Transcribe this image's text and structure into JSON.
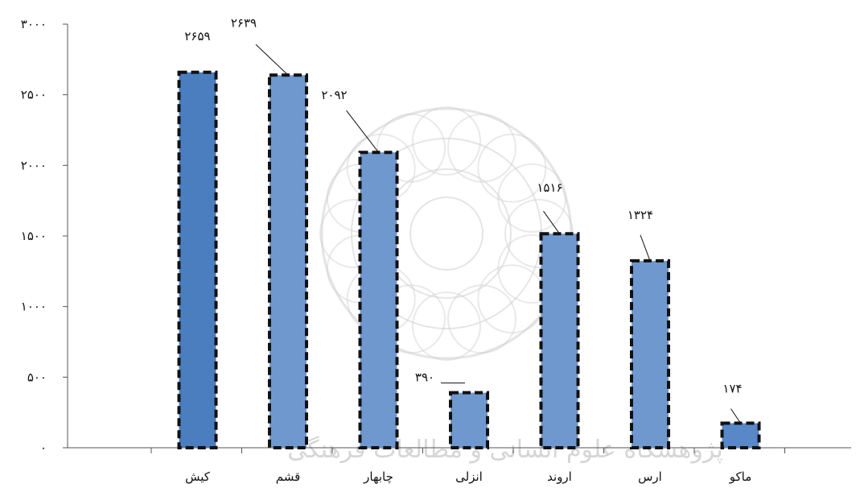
{
  "chart_data": {
    "type": "bar",
    "categories": [
      "کیش",
      "قشم",
      "چابهار",
      "انزلی",
      "اروند",
      "ارس",
      "ماکو"
    ],
    "values": [
      2659,
      2639,
      2092,
      390,
      1516,
      1324,
      174
    ],
    "data_labels": [
      "۲۶۵۹",
      "۲۶۳۹",
      "۲۰۹۲",
      "۳۹۰",
      "۱۵۱۶",
      "۱۳۲۴",
      "۱۷۴"
    ],
    "y_ticks": [
      0,
      500,
      1000,
      1500,
      2000,
      2500,
      3000
    ],
    "y_tick_labels": [
      "۰",
      "۵۰۰",
      "۱۰۰۰",
      "۱۵۰۰",
      "۲۰۰۰",
      "۲۵۰۰",
      "۳۰۰۰"
    ],
    "ylim": [
      0,
      3000
    ],
    "grid": false,
    "legend": "none",
    "bar_style": "dashed black border",
    "colors": {
      "bar_fill": [
        "#4a7ebf",
        "#6f98cf",
        "#6f98cf",
        "#6f98cf",
        "#6f98cf",
        "#6f98cf",
        "#5888c8"
      ],
      "bar_border": "#111111",
      "axis": "#555555",
      "watermark": "#cfcfcf"
    },
    "watermark_text": "پژوهشگاه علوم انسانی و مطالعات فرهنگی"
  }
}
